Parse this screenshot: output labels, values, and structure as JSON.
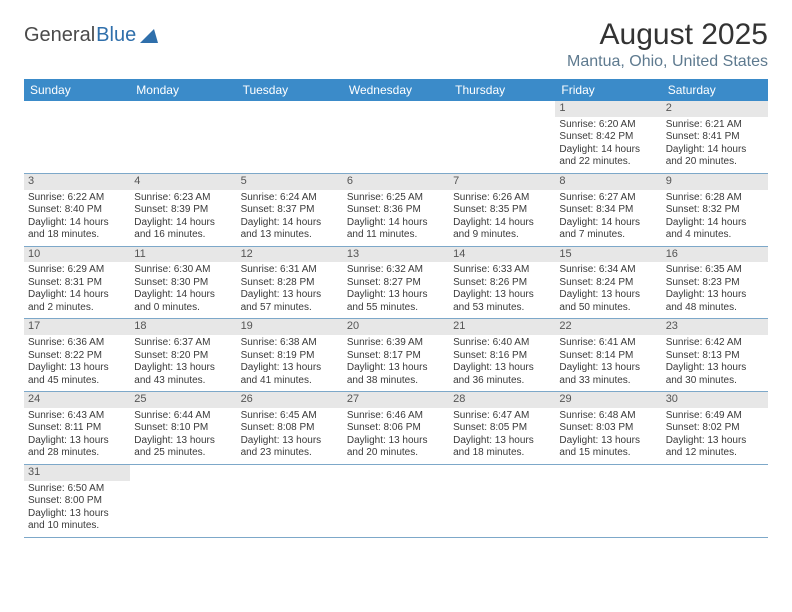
{
  "brand": {
    "part1": "General",
    "part2": "Blue"
  },
  "title": "August 2025",
  "location": "Mantua, Ohio, United States",
  "colors": {
    "header_bg": "#3b8bc9",
    "header_text": "#ffffff",
    "daynum_bg": "#e7e7e7",
    "row_border": "#7da8c9",
    "subtitle": "#5e7a8f"
  },
  "weekdays": [
    "Sunday",
    "Monday",
    "Tuesday",
    "Wednesday",
    "Thursday",
    "Friday",
    "Saturday"
  ],
  "weeks": [
    [
      null,
      null,
      null,
      null,
      null,
      {
        "n": "1",
        "sr": "6:20 AM",
        "ss": "8:42 PM",
        "dl": "14 hours and 22 minutes."
      },
      {
        "n": "2",
        "sr": "6:21 AM",
        "ss": "8:41 PM",
        "dl": "14 hours and 20 minutes."
      }
    ],
    [
      {
        "n": "3",
        "sr": "6:22 AM",
        "ss": "8:40 PM",
        "dl": "14 hours and 18 minutes."
      },
      {
        "n": "4",
        "sr": "6:23 AM",
        "ss": "8:39 PM",
        "dl": "14 hours and 16 minutes."
      },
      {
        "n": "5",
        "sr": "6:24 AM",
        "ss": "8:37 PM",
        "dl": "14 hours and 13 minutes."
      },
      {
        "n": "6",
        "sr": "6:25 AM",
        "ss": "8:36 PM",
        "dl": "14 hours and 11 minutes."
      },
      {
        "n": "7",
        "sr": "6:26 AM",
        "ss": "8:35 PM",
        "dl": "14 hours and 9 minutes."
      },
      {
        "n": "8",
        "sr": "6:27 AM",
        "ss": "8:34 PM",
        "dl": "14 hours and 7 minutes."
      },
      {
        "n": "9",
        "sr": "6:28 AM",
        "ss": "8:32 PM",
        "dl": "14 hours and 4 minutes."
      }
    ],
    [
      {
        "n": "10",
        "sr": "6:29 AM",
        "ss": "8:31 PM",
        "dl": "14 hours and 2 minutes."
      },
      {
        "n": "11",
        "sr": "6:30 AM",
        "ss": "8:30 PM",
        "dl": "14 hours and 0 minutes."
      },
      {
        "n": "12",
        "sr": "6:31 AM",
        "ss": "8:28 PM",
        "dl": "13 hours and 57 minutes."
      },
      {
        "n": "13",
        "sr": "6:32 AM",
        "ss": "8:27 PM",
        "dl": "13 hours and 55 minutes."
      },
      {
        "n": "14",
        "sr": "6:33 AM",
        "ss": "8:26 PM",
        "dl": "13 hours and 53 minutes."
      },
      {
        "n": "15",
        "sr": "6:34 AM",
        "ss": "8:24 PM",
        "dl": "13 hours and 50 minutes."
      },
      {
        "n": "16",
        "sr": "6:35 AM",
        "ss": "8:23 PM",
        "dl": "13 hours and 48 minutes."
      }
    ],
    [
      {
        "n": "17",
        "sr": "6:36 AM",
        "ss": "8:22 PM",
        "dl": "13 hours and 45 minutes."
      },
      {
        "n": "18",
        "sr": "6:37 AM",
        "ss": "8:20 PM",
        "dl": "13 hours and 43 minutes."
      },
      {
        "n": "19",
        "sr": "6:38 AM",
        "ss": "8:19 PM",
        "dl": "13 hours and 41 minutes."
      },
      {
        "n": "20",
        "sr": "6:39 AM",
        "ss": "8:17 PM",
        "dl": "13 hours and 38 minutes."
      },
      {
        "n": "21",
        "sr": "6:40 AM",
        "ss": "8:16 PM",
        "dl": "13 hours and 36 minutes."
      },
      {
        "n": "22",
        "sr": "6:41 AM",
        "ss": "8:14 PM",
        "dl": "13 hours and 33 minutes."
      },
      {
        "n": "23",
        "sr": "6:42 AM",
        "ss": "8:13 PM",
        "dl": "13 hours and 30 minutes."
      }
    ],
    [
      {
        "n": "24",
        "sr": "6:43 AM",
        "ss": "8:11 PM",
        "dl": "13 hours and 28 minutes."
      },
      {
        "n": "25",
        "sr": "6:44 AM",
        "ss": "8:10 PM",
        "dl": "13 hours and 25 minutes."
      },
      {
        "n": "26",
        "sr": "6:45 AM",
        "ss": "8:08 PM",
        "dl": "13 hours and 23 minutes."
      },
      {
        "n": "27",
        "sr": "6:46 AM",
        "ss": "8:06 PM",
        "dl": "13 hours and 20 minutes."
      },
      {
        "n": "28",
        "sr": "6:47 AM",
        "ss": "8:05 PM",
        "dl": "13 hours and 18 minutes."
      },
      {
        "n": "29",
        "sr": "6:48 AM",
        "ss": "8:03 PM",
        "dl": "13 hours and 15 minutes."
      },
      {
        "n": "30",
        "sr": "6:49 AM",
        "ss": "8:02 PM",
        "dl": "13 hours and 12 minutes."
      }
    ],
    [
      {
        "n": "31",
        "sr": "6:50 AM",
        "ss": "8:00 PM",
        "dl": "13 hours and 10 minutes."
      },
      null,
      null,
      null,
      null,
      null,
      null
    ]
  ],
  "labels": {
    "sunrise": "Sunrise:",
    "sunset": "Sunset:",
    "daylight": "Daylight:"
  }
}
